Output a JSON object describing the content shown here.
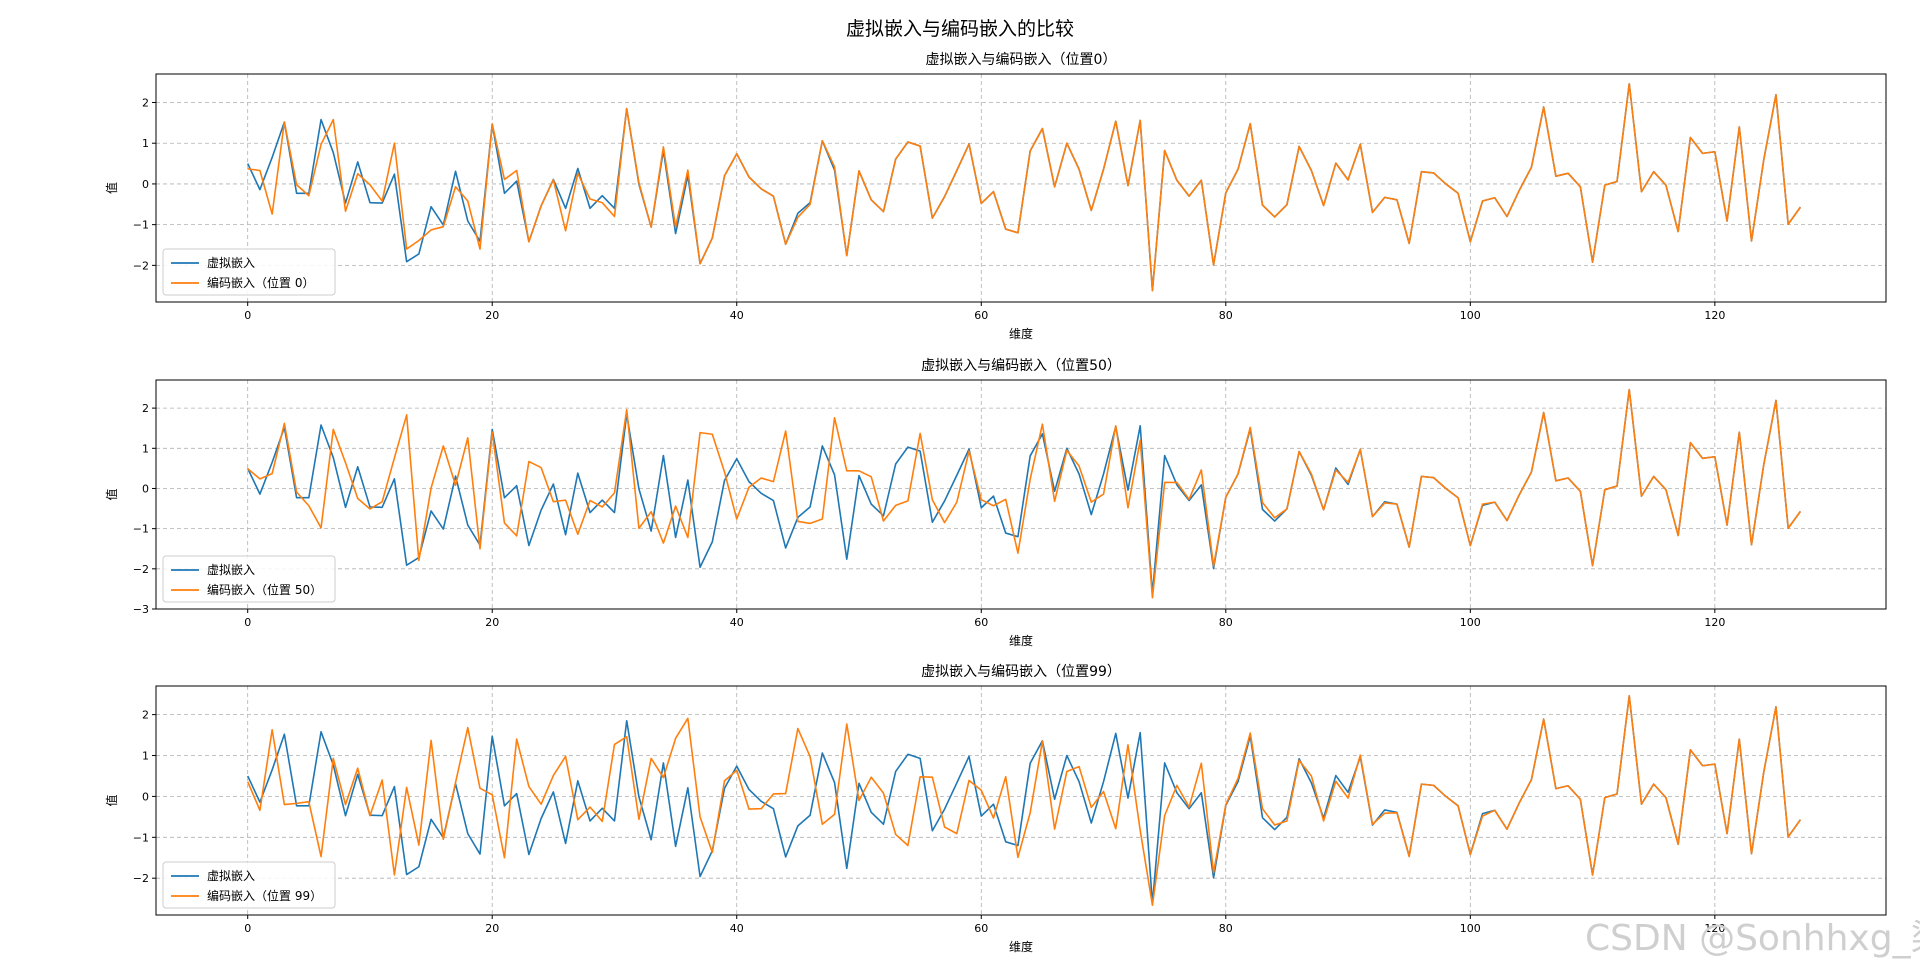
{
  "suptitle": "虚拟嵌入与编码嵌入的比较",
  "watermark": "CSDN @Sonhhxg_柒",
  "colors": {
    "virtual": "#1f77b4",
    "encoded": "#ff7f0e"
  },
  "chart_data": [
    {
      "type": "line",
      "title": "虚拟嵌入与编码嵌入（位置0）",
      "xlabel": "维度",
      "ylabel": "值",
      "xlim": [
        -7.5,
        134
      ],
      "ylim": [
        -2.9,
        2.7
      ],
      "xticks": [
        0,
        20,
        40,
        60,
        80,
        100,
        120
      ],
      "yticks": [
        -2,
        -1,
        0,
        1,
        2
      ],
      "grid": true,
      "legend_position": "lower-left",
      "series": [
        {
          "name": "虚拟嵌入",
          "color": "#1f77b4",
          "values": [
            0.5,
            -0.14,
            0.65,
            1.52,
            -0.23,
            -0.23,
            1.58,
            0.77,
            -0.47,
            0.54,
            -0.46,
            -0.47,
            0.24,
            -1.91,
            -1.72,
            -0.56,
            -1.01,
            0.31,
            -0.91,
            -1.41,
            1.47,
            -0.23,
            0.07,
            -1.42,
            -0.54,
            0.11,
            -0.6,
            0.38,
            -0.6,
            -0.29,
            -0.6,
            1.85,
            -0.01,
            -1.06,
            0.82,
            -1.22,
            0.21,
            -1.96,
            -1.33,
            0.2,
            0.74,
            0.17,
            -0.12,
            -0.3,
            -1.48,
            -0.72,
            -0.46,
            1.06,
            0.34,
            -1.76,
            0.32,
            -0.39,
            -0.68,
            0.61,
            1.03,
            0.93,
            -0.84,
            -0.31,
            0.33,
            0.98,
            -0.48,
            -0.19,
            -1.11,
            -1.2,
            0.81,
            1.36,
            -0.07,
            1.0,
            0.36,
            -0.65,
            0.36,
            1.54,
            -0.04,
            1.56,
            -2.62,
            0.82,
            0.09,
            -0.3,
            0.09,
            -1.99,
            -0.22,
            0.36,
            1.48,
            -0.52,
            -0.81,
            -0.51,
            0.92,
            0.33,
            -0.53,
            0.51,
            0.1,
            0.97,
            -0.7,
            -0.33,
            -0.39,
            -1.46,
            0.3,
            0.27,
            0.0,
            -0.23,
            -1.42,
            -0.42,
            -0.34,
            -0.8,
            -0.16,
            0.41,
            1.89,
            0.19,
            0.26,
            -0.07,
            -1.92,
            -0.03,
            0.06,
            2.46,
            -0.19,
            0.3,
            -0.03,
            -1.17,
            1.14,
            0.75,
            0.79,
            -0.91,
            1.4,
            -1.4,
            0.59,
            2.19,
            -0.99,
            -0.57
          ]
        },
        {
          "name": "编码嵌入（位置 0）",
          "color": "#ff7f0e",
          "values": [
            0.37,
            0.33,
            -0.74,
            1.52,
            -0.02,
            -0.29,
            0.97,
            1.58,
            -0.67,
            0.25,
            -0.02,
            -0.42,
            1.0,
            -1.6,
            -1.39,
            -1.13,
            -1.05,
            -0.07,
            -0.42,
            -1.6,
            1.47,
            0.11,
            0.33,
            -1.42,
            -0.54,
            0.1,
            -1.15,
            0.26,
            -0.37,
            -0.46,
            -0.8,
            1.85,
            0.03,
            -1.06,
            0.91,
            -1.06,
            0.34,
            -1.96,
            -1.33,
            0.2,
            0.74,
            0.17,
            -0.12,
            -0.3,
            -1.48,
            -0.82,
            -0.5,
            1.06,
            0.42,
            -1.76,
            0.32,
            -0.39,
            -0.68,
            0.61,
            1.03,
            0.93,
            -0.84,
            -0.31,
            0.33,
            0.98,
            -0.48,
            -0.19,
            -1.11,
            -1.2,
            0.81,
            1.36,
            -0.07,
            1.0,
            0.36,
            -0.65,
            0.36,
            1.54,
            -0.04,
            1.56,
            -2.62,
            0.82,
            0.09,
            -0.3,
            0.09,
            -1.99,
            -0.22,
            0.36,
            1.48,
            -0.52,
            -0.81,
            -0.51,
            0.92,
            0.33,
            -0.53,
            0.51,
            0.1,
            0.97,
            -0.7,
            -0.33,
            -0.39,
            -1.46,
            0.3,
            0.27,
            0.0,
            -0.23,
            -1.42,
            -0.42,
            -0.34,
            -0.8,
            -0.16,
            0.41,
            1.89,
            0.19,
            0.26,
            -0.07,
            -1.92,
            -0.03,
            0.06,
            2.46,
            -0.19,
            0.3,
            -0.03,
            -1.17,
            1.14,
            0.75,
            0.79,
            -0.91,
            1.4,
            -1.4,
            0.59,
            2.19,
            -0.99,
            -0.57
          ]
        }
      ]
    },
    {
      "type": "line",
      "title": "虚拟嵌入与编码嵌入（位置50）",
      "xlabel": "维度",
      "ylabel": "值",
      "xlim": [
        -7.5,
        134
      ],
      "ylim": [
        -3.0,
        2.7
      ],
      "xticks": [
        0,
        20,
        40,
        60,
        80,
        100,
        120
      ],
      "yticks": [
        -3,
        -2,
        -1,
        0,
        1,
        2
      ],
      "grid": true,
      "legend_position": "lower-left",
      "series": [
        {
          "name": "虚拟嵌入",
          "color": "#1f77b4",
          "values": [
            0.5,
            -0.14,
            0.65,
            1.52,
            -0.23,
            -0.23,
            1.58,
            0.77,
            -0.47,
            0.54,
            -0.46,
            -0.47,
            0.24,
            -1.91,
            -1.72,
            -0.56,
            -1.01,
            0.31,
            -0.91,
            -1.41,
            1.47,
            -0.23,
            0.07,
            -1.42,
            -0.54,
            0.11,
            -1.15,
            0.38,
            -0.6,
            -0.29,
            -0.6,
            1.85,
            -0.01,
            -1.06,
            0.82,
            -1.22,
            0.21,
            -1.96,
            -1.33,
            0.2,
            0.74,
            0.17,
            -0.12,
            -0.3,
            -1.48,
            -0.72,
            -0.46,
            1.06,
            0.34,
            -1.76,
            0.32,
            -0.39,
            -0.68,
            0.61,
            1.03,
            0.93,
            -0.84,
            -0.31,
            0.33,
            0.98,
            -0.48,
            -0.19,
            -1.11,
            -1.2,
            0.81,
            1.36,
            -0.07,
            1.0,
            0.36,
            -0.65,
            0.36,
            1.54,
            -0.04,
            1.56,
            -2.62,
            0.82,
            0.09,
            -0.3,
            0.09,
            -1.99,
            -0.22,
            0.36,
            1.48,
            -0.52,
            -0.81,
            -0.51,
            0.92,
            0.33,
            -0.53,
            0.51,
            0.1,
            0.97,
            -0.7,
            -0.33,
            -0.39,
            -1.46,
            0.3,
            0.27,
            0.0,
            -0.23,
            -1.42,
            -0.42,
            -0.34,
            -0.8,
            -0.16,
            0.41,
            1.89,
            0.19,
            0.26,
            -0.07,
            -1.92,
            -0.03,
            0.06,
            2.46,
            -0.19,
            0.3,
            -0.03,
            -1.17,
            1.14,
            0.75,
            0.79,
            -0.91,
            1.4,
            -1.4,
            0.59,
            2.19,
            -0.99,
            -0.57
          ]
        },
        {
          "name": "编码嵌入（位置 50）",
          "color": "#ff7f0e",
          "values": [
            0.49,
            0.24,
            0.37,
            1.62,
            -0.09,
            -0.43,
            -0.98,
            1.47,
            0.64,
            -0.25,
            -0.51,
            -0.33,
            0.76,
            1.83,
            -1.79,
            0.01,
            1.06,
            0.08,
            1.26,
            -1.5,
            1.4,
            -0.86,
            -1.18,
            0.67,
            0.52,
            -0.33,
            -0.29,
            -1.14,
            -0.3,
            -0.46,
            -0.11,
            1.96,
            -0.99,
            -0.58,
            -1.36,
            -0.44,
            -1.22,
            1.39,
            1.35,
            0.41,
            -0.76,
            0.03,
            0.26,
            0.17,
            1.43,
            -0.82,
            -0.87,
            -0.76,
            1.76,
            0.44,
            0.44,
            0.29,
            -0.81,
            -0.42,
            -0.31,
            1.37,
            -0.28,
            -0.85,
            -0.34,
            0.93,
            -0.28,
            -0.43,
            -0.27,
            -1.61,
            0.23,
            1.6,
            -0.32,
            0.95,
            0.56,
            -0.34,
            -0.14,
            1.56,
            -0.48,
            1.2,
            -2.72,
            0.15,
            0.15,
            -0.27,
            0.46,
            -1.93,
            -0.22,
            0.36,
            1.52,
            -0.35,
            -0.73,
            -0.51,
            0.92,
            0.36,
            -0.53,
            0.46,
            0.15,
            0.97,
            -0.7,
            -0.36,
            -0.39,
            -1.46,
            0.3,
            0.27,
            0.0,
            -0.23,
            -1.42,
            -0.39,
            -0.34,
            -0.8,
            -0.16,
            0.41,
            1.89,
            0.19,
            0.26,
            -0.07,
            -1.92,
            -0.03,
            0.06,
            2.46,
            -0.19,
            0.3,
            -0.03,
            -1.17,
            1.14,
            0.75,
            0.79,
            -0.91,
            1.4,
            -1.4,
            0.59,
            2.19,
            -0.99,
            -0.57
          ]
        }
      ]
    },
    {
      "type": "line",
      "title": "虚拟嵌入与编码嵌入（位置99）",
      "xlabel": "维度",
      "ylabel": "值",
      "xlim": [
        -7.5,
        134
      ],
      "ylim": [
        -2.9,
        2.7
      ],
      "xticks": [
        0,
        20,
        40,
        60,
        80,
        100,
        120
      ],
      "yticks": [
        -2,
        -1,
        0,
        1,
        2
      ],
      "grid": true,
      "legend_position": "lower-left",
      "series": [
        {
          "name": "虚拟嵌入",
          "color": "#1f77b4",
          "values": [
            0.5,
            -0.14,
            0.65,
            1.52,
            -0.23,
            -0.23,
            1.58,
            0.77,
            -0.47,
            0.54,
            -0.46,
            -0.47,
            0.24,
            -1.91,
            -1.72,
            -0.56,
            -1.01,
            0.31,
            -0.91,
            -1.41,
            1.47,
            -0.23,
            0.07,
            -1.42,
            -0.54,
            0.11,
            -1.15,
            0.38,
            -0.6,
            -0.29,
            -0.6,
            1.85,
            -0.01,
            -1.06,
            0.82,
            -1.22,
            0.21,
            -1.96,
            -1.33,
            0.2,
            0.74,
            0.17,
            -0.12,
            -0.3,
            -1.48,
            -0.72,
            -0.46,
            1.06,
            0.34,
            -1.76,
            0.32,
            -0.39,
            -0.68,
            0.61,
            1.03,
            0.93,
            -0.84,
            -0.31,
            0.33,
            0.98,
            -0.48,
            -0.19,
            -1.11,
            -1.2,
            0.81,
            1.36,
            -0.07,
            1.0,
            0.36,
            -0.65,
            0.36,
            1.54,
            -0.04,
            1.56,
            -2.62,
            0.82,
            0.09,
            -0.3,
            0.09,
            -1.99,
            -0.22,
            0.36,
            1.48,
            -0.52,
            -0.81,
            -0.51,
            0.92,
            0.33,
            -0.53,
            0.51,
            0.1,
            0.97,
            -0.7,
            -0.33,
            -0.39,
            -1.46,
            0.3,
            0.27,
            0.0,
            -0.23,
            -1.42,
            -0.42,
            -0.34,
            -0.8,
            -0.16,
            0.41,
            1.89,
            0.19,
            0.26,
            -0.07,
            -1.92,
            -0.03,
            0.06,
            2.46,
            -0.19,
            0.3,
            -0.03,
            -1.17,
            1.14,
            0.75,
            0.79,
            -0.91,
            1.4,
            -1.4,
            0.59,
            2.19,
            -0.99,
            -0.57
          ]
        },
        {
          "name": "编码嵌入（位置 99）",
          "color": "#ff7f0e",
          "values": [
            0.36,
            -0.34,
            1.63,
            -0.2,
            -0.17,
            -0.13,
            -1.47,
            0.93,
            -0.2,
            0.69,
            -0.47,
            0.4,
            -1.92,
            0.22,
            -1.19,
            1.37,
            -1.05,
            0.34,
            1.68,
            0.2,
            0.04,
            -1.5,
            1.4,
            0.24,
            -0.19,
            0.51,
            0.98,
            -0.57,
            -0.26,
            -0.61,
            1.27,
            1.46,
            -0.56,
            0.93,
            0.46,
            1.42,
            1.91,
            -0.5,
            -1.37,
            0.38,
            0.64,
            -0.31,
            -0.3,
            0.06,
            0.07,
            1.66,
            0.97,
            -0.68,
            -0.44,
            1.77,
            -0.1,
            0.47,
            0.08,
            -0.93,
            -1.2,
            0.48,
            0.47,
            -0.75,
            -0.91,
            0.39,
            0.15,
            -0.53,
            0.48,
            -1.49,
            -0.4,
            1.35,
            -0.8,
            0.61,
            0.73,
            -0.27,
            0.12,
            -0.79,
            1.26,
            -0.83,
            -2.66,
            -0.47,
            0.27,
            -0.26,
            0.81,
            -1.86,
            -0.2,
            0.44,
            1.55,
            -0.3,
            -0.7,
            -0.6,
            0.88,
            0.5,
            -0.6,
            0.37,
            -0.04,
            1.01,
            -0.68,
            -0.41,
            -0.4,
            -1.47,
            0.3,
            0.27,
            0.0,
            -0.23,
            -1.42,
            -0.48,
            -0.34,
            -0.8,
            -0.16,
            0.41,
            1.89,
            0.19,
            0.26,
            -0.07,
            -1.92,
            -0.03,
            0.06,
            2.46,
            -0.19,
            0.3,
            -0.03,
            -1.17,
            1.14,
            0.75,
            0.79,
            -0.91,
            1.4,
            -1.4,
            0.59,
            2.19,
            -0.99,
            -0.57
          ]
        }
      ]
    }
  ]
}
